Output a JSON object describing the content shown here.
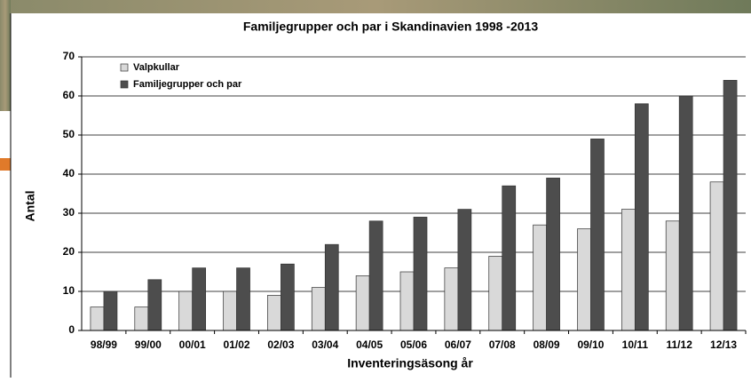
{
  "chart_data": {
    "type": "bar",
    "title": "Familjegrupper och par i Skandinavien 1998 -2013",
    "xlabel": "Inventeringsäsong år",
    "ylabel": "Antal",
    "categories": [
      "98/99",
      "99/00",
      "00/01",
      "01/02",
      "02/03",
      "03/04",
      "04/05",
      "05/06",
      "06/07",
      "07/08",
      "08/09",
      "09/10",
      "10/11",
      "11/12",
      "12/13"
    ],
    "series": [
      {
        "name": "Valpkullar",
        "color": "#d9d9d9",
        "values": [
          6,
          6,
          10,
          10,
          9,
          11,
          14,
          15,
          16,
          19,
          27,
          26,
          31,
          28,
          38
        ]
      },
      {
        "name": "Familjegrupper och par",
        "color": "#4d4d4d",
        "values": [
          10,
          13,
          16,
          16,
          17,
          22,
          28,
          29,
          31,
          37,
          39,
          49,
          58,
          60,
          64
        ]
      }
    ],
    "ylim": [
      0,
      70
    ],
    "yticks": [
      0,
      10,
      20,
      30,
      40,
      50,
      60,
      70
    ],
    "grid": true,
    "legend": "upper left"
  }
}
